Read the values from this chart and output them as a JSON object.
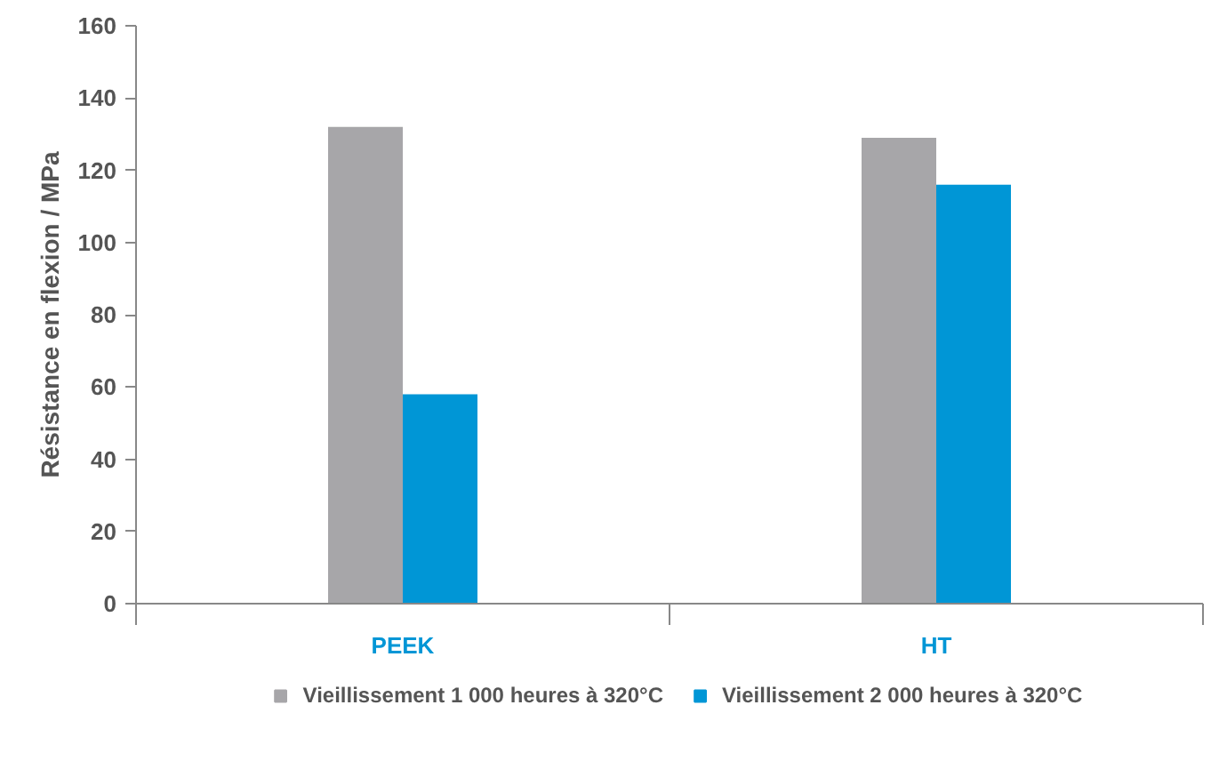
{
  "chart_data": {
    "type": "bar",
    "ylabel": "Résistance en flexion / MPa",
    "categories": [
      "PEEK",
      "HT"
    ],
    "series": [
      {
        "name": "Vieillissement 1 000 heures à 320°C",
        "color": "#a7a6a9",
        "values": [
          132,
          129
        ]
      },
      {
        "name": "Vieillissement 2 000 heures à 320°C",
        "color": "#0096d6",
        "values": [
          58,
          116
        ]
      }
    ],
    "ylim": [
      0,
      160
    ],
    "yticks": [
      0,
      20,
      40,
      60,
      80,
      100,
      120,
      140,
      160
    ],
    "grid": false,
    "legend": "bottom"
  }
}
